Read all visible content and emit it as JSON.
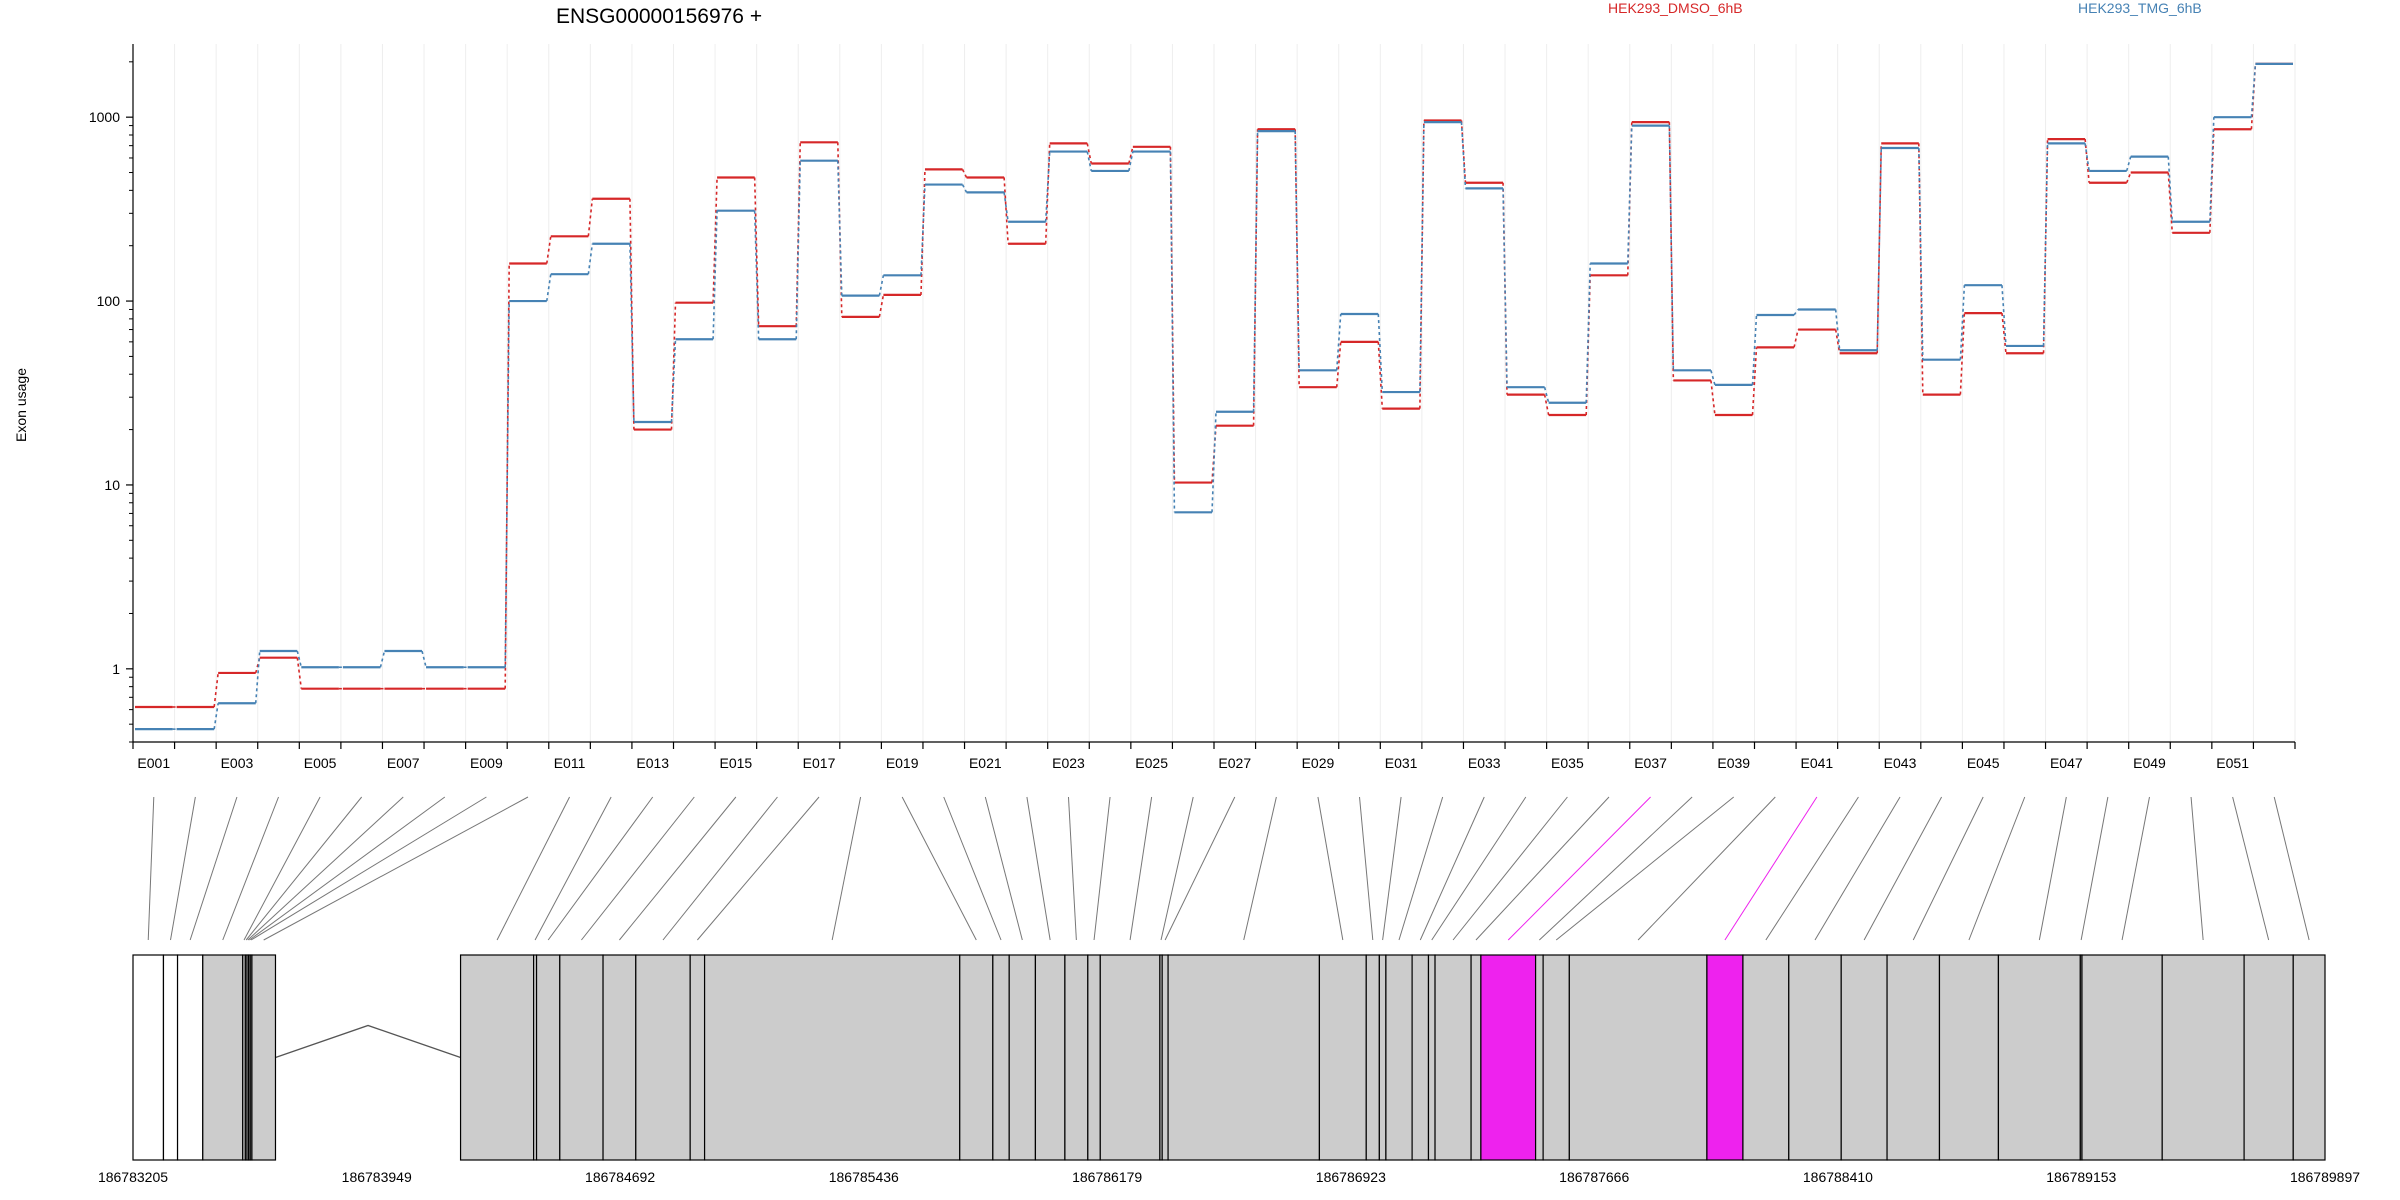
{
  "chart_data": {
    "type": "line",
    "title": "ENSG00000156976 +",
    "ylabel": "Exon usage",
    "yscale": "log",
    "ylim": [
      0.4,
      2500
    ],
    "y_ticks": [
      1,
      10,
      100,
      1000
    ],
    "y_tick_labels": [
      "1",
      "10",
      "100",
      "1000"
    ],
    "grid": "vertical, light",
    "legend_placement": "top",
    "categories": [
      "E001",
      "E002",
      "E003",
      "E004",
      "E005",
      "E006",
      "E007",
      "E008",
      "E009",
      "E010",
      "E011",
      "E012",
      "E013",
      "E014",
      "E015",
      "E016",
      "E017",
      "E018",
      "E019",
      "E020",
      "E021",
      "E022",
      "E023",
      "E024",
      "E025",
      "E026",
      "E027",
      "E028",
      "E029",
      "E030",
      "E031",
      "E032",
      "E033",
      "E034",
      "E035",
      "E036",
      "E037",
      "E038",
      "E039",
      "E040",
      "E041",
      "E042",
      "E043",
      "E044",
      "E045",
      "E046",
      "E047",
      "E048",
      "E049",
      "E050",
      "E051",
      "E052"
    ],
    "series": [
      {
        "name": "HEK293_DMSO_6hB",
        "color": "#d62728",
        "values": [
          0.62,
          0.62,
          0.95,
          1.15,
          0.78,
          0.78,
          0.78,
          0.78,
          0.78,
          160,
          225,
          360,
          20,
          98,
          470,
          73,
          730,
          82,
          108,
          520,
          470,
          205,
          720,
          560,
          690,
          10.3,
          21,
          860,
          34,
          60,
          26,
          960,
          440,
          31,
          24,
          138,
          940,
          37,
          24,
          56,
          70,
          52,
          720,
          31,
          86,
          52,
          760,
          440,
          500,
          235,
          860,
          1950
        ]
      },
      {
        "name": "HEK293_TMG_6hB",
        "color": "#4682b4",
        "values": [
          0.47,
          0.47,
          0.65,
          1.25,
          1.02,
          1.02,
          1.25,
          1.02,
          1.02,
          100,
          140,
          205,
          22,
          62,
          310,
          62,
          580,
          107,
          138,
          430,
          390,
          270,
          650,
          510,
          650,
          7.1,
          25,
          840,
          42,
          85,
          32,
          940,
          410,
          34,
          28,
          160,
          900,
          42,
          35,
          84,
          90,
          54,
          680,
          48,
          122,
          57,
          720,
          510,
          610,
          270,
          1000,
          1950
        ]
      }
    ],
    "x_tick_labels": [
      "E001",
      "E003",
      "E005",
      "E007",
      "E009",
      "E011",
      "E013",
      "E015",
      "E017",
      "E019",
      "E021",
      "E023",
      "E025",
      "E027",
      "E029",
      "E031",
      "E033",
      "E035",
      "E037",
      "E039",
      "E041",
      "E043",
      "E045",
      "E047",
      "E049",
      "E051"
    ],
    "genomic_start": 186783205,
    "genomic_end": 186789897,
    "genomic_tick_labels": [
      "186783205",
      "186783949",
      "186784692",
      "186785436",
      "186786179",
      "186786923",
      "186787666",
      "186788410",
      "186789153",
      "186789897"
    ],
    "exons": [
      {
        "id": "E001",
        "start": 186783205,
        "end": 186783298,
        "fill": "#ffffff"
      },
      {
        "id": "E002",
        "start": 186783298,
        "end": 186783341,
        "fill": "#ffffff"
      },
      {
        "id": "E003",
        "start": 186783341,
        "end": 186783418,
        "fill": "#ffffff"
      },
      {
        "id": "E004",
        "start": 186783418,
        "end": 186783540,
        "fill": "#cccccc"
      },
      {
        "id": "E005",
        "start": 186783540,
        "end": 186783548,
        "fill": "#cccccc"
      },
      {
        "id": "E006",
        "start": 186783548,
        "end": 186783553,
        "fill": "#cccccc"
      },
      {
        "id": "E007",
        "start": 186783553,
        "end": 186783558,
        "fill": "#cccccc"
      },
      {
        "id": "E008",
        "start": 186783558,
        "end": 186783563,
        "fill": "#cccccc"
      },
      {
        "id": "E009",
        "start": 186783563,
        "end": 186783568,
        "fill": "#cccccc"
      },
      {
        "id": "E010",
        "start": 186783568,
        "end": 186783640,
        "fill": "#cccccc"
      },
      {
        "id": "E011",
        "start": 186784205,
        "end": 186784428,
        "fill": "#cccccc"
      },
      {
        "id": "E012",
        "start": 186784428,
        "end": 186784437,
        "fill": "#cccccc"
      },
      {
        "id": "E013",
        "start": 186784437,
        "end": 186784508,
        "fill": "#cccccc"
      },
      {
        "id": "E014",
        "start": 186784508,
        "end": 186784640,
        "fill": "#cccccc"
      },
      {
        "id": "E015",
        "start": 186784640,
        "end": 186784740,
        "fill": "#cccccc"
      },
      {
        "id": "E016",
        "start": 186784740,
        "end": 186784906,
        "fill": "#cccccc"
      },
      {
        "id": "E017",
        "start": 186784906,
        "end": 186784950,
        "fill": "#cccccc"
      },
      {
        "id": "E018",
        "start": 186784950,
        "end": 186785729,
        "fill": "#cccccc"
      },
      {
        "id": "E019",
        "start": 186785729,
        "end": 186785830,
        "fill": "#cccccc"
      },
      {
        "id": "E020",
        "start": 186785830,
        "end": 186785880,
        "fill": "#cccccc"
      },
      {
        "id": "E021",
        "start": 186785880,
        "end": 186785960,
        "fill": "#cccccc"
      },
      {
        "id": "E022",
        "start": 186785960,
        "end": 186786050,
        "fill": "#cccccc"
      },
      {
        "id": "E023",
        "start": 186786050,
        "end": 186786120,
        "fill": "#cccccc"
      },
      {
        "id": "E024",
        "start": 186786120,
        "end": 186786158,
        "fill": "#cccccc"
      },
      {
        "id": "E025",
        "start": 186786158,
        "end": 186786340,
        "fill": "#cccccc"
      },
      {
        "id": "E026",
        "start": 186786340,
        "end": 186786347,
        "fill": "#cccccc"
      },
      {
        "id": "E027",
        "start": 186786347,
        "end": 186786365,
        "fill": "#cccccc"
      },
      {
        "id": "E028",
        "start": 186786365,
        "end": 186786827,
        "fill": "#cccccc"
      },
      {
        "id": "E029",
        "start": 186786827,
        "end": 186786970,
        "fill": "#cccccc"
      },
      {
        "id": "E030",
        "start": 186786970,
        "end": 186787010,
        "fill": "#cccccc"
      },
      {
        "id": "E031",
        "start": 186787010,
        "end": 186787030,
        "fill": "#cccccc"
      },
      {
        "id": "E032",
        "start": 186787030,
        "end": 186787110,
        "fill": "#cccccc"
      },
      {
        "id": "E033",
        "start": 186787110,
        "end": 186787160,
        "fill": "#cccccc"
      },
      {
        "id": "E034",
        "start": 186787160,
        "end": 186787180,
        "fill": "#cccccc"
      },
      {
        "id": "E035",
        "start": 186787180,
        "end": 186787290,
        "fill": "#cccccc"
      },
      {
        "id": "E036",
        "start": 186787290,
        "end": 186787320,
        "fill": "#cccccc"
      },
      {
        "id": "E037",
        "start": 186787320,
        "end": 186787487,
        "fill": "#ee22ee"
      },
      {
        "id": "E038",
        "start": 186787487,
        "end": 186787510,
        "fill": "#cccccc"
      },
      {
        "id": "E039",
        "start": 186787510,
        "end": 186787590,
        "fill": "#cccccc"
      },
      {
        "id": "E040",
        "start": 186787590,
        "end": 186788010,
        "fill": "#cccccc"
      },
      {
        "id": "E041",
        "start": 186788010,
        "end": 186788120,
        "fill": "#ee22ee"
      },
      {
        "id": "E042",
        "start": 186788120,
        "end": 186788260,
        "fill": "#cccccc"
      },
      {
        "id": "E043",
        "start": 186788260,
        "end": 186788420,
        "fill": "#cccccc"
      },
      {
        "id": "E044",
        "start": 186788420,
        "end": 186788560,
        "fill": "#cccccc"
      },
      {
        "id": "E045",
        "start": 186788560,
        "end": 186788720,
        "fill": "#cccccc"
      },
      {
        "id": "E046",
        "start": 186788720,
        "end": 186788900,
        "fill": "#cccccc"
      },
      {
        "id": "E047",
        "start": 186788900,
        "end": 186789150,
        "fill": "#cccccc"
      },
      {
        "id": "E048",
        "start": 186789150,
        "end": 186789155,
        "fill": "#cccccc"
      },
      {
        "id": "E049",
        "start": 186789155,
        "end": 186789400,
        "fill": "#cccccc"
      },
      {
        "id": "E050",
        "start": 186789400,
        "end": 186789650,
        "fill": "#cccccc"
      },
      {
        "id": "E051",
        "start": 186789650,
        "end": 186789800,
        "fill": "#cccccc"
      },
      {
        "id": "E052",
        "start": 186789800,
        "end": 186789897,
        "fill": "#cccccc"
      }
    ],
    "intron_span": [
      186783640,
      186784205
    ],
    "highlight_color": "#ee22ee"
  }
}
